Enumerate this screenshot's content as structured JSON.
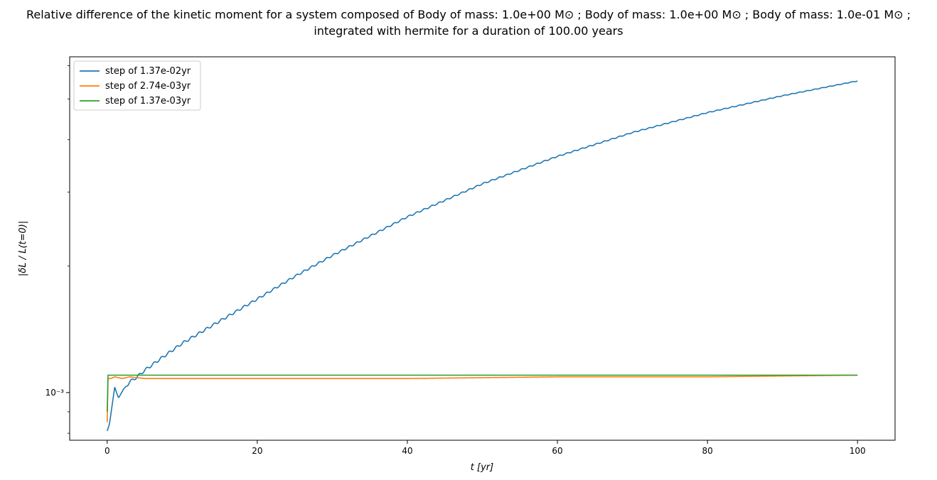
{
  "chart_data": {
    "type": "line",
    "title_lines": [
      "Relative difference of the kinetic moment for a system composed of Body of mass: 1.0e+00 M⊙ ; Body of mass: 1.0e+00 M⊙ ; Body of mass: 1.0e-01 M⊙ ;",
      "integrated with hermite for a duration of 100.00 years"
    ],
    "xlabel": "t [yr]",
    "ylabel": "|δL / L(t=0)|",
    "x_ticks": [
      0,
      20,
      40,
      60,
      80,
      100
    ],
    "x_tick_labels": [
      "0",
      "20",
      "40",
      "60",
      "80",
      "100"
    ],
    "y_scale": "log",
    "y_major_ticks": [
      0.001
    ],
    "y_major_tick_labels": [
      "10⁻³"
    ],
    "xlim": [
      -5,
      105
    ],
    "ylim": [
      0.00077,
      0.0063
    ],
    "legend_position": "top-left",
    "grid": false,
    "series": [
      {
        "name": "step of 1.37e-02yr",
        "color": "#1f77b4",
        "x": [
          0,
          0.3,
          1.0,
          1.5,
          2.2,
          3,
          4,
          5,
          7,
          10,
          15,
          20,
          25,
          30,
          40,
          50,
          60,
          70,
          80,
          90,
          100
        ],
        "y": [
          0.00081,
          0.00084,
          0.00103,
          0.00097,
          0.00102,
          0.00106,
          0.00109,
          0.00113,
          0.0012,
          0.00131,
          0.00148,
          0.00167,
          0.00189,
          0.00212,
          0.00262,
          0.00314,
          0.00365,
          0.00416,
          0.00464,
          0.00509,
          0.00552
        ],
        "wiggle": 0.03
      },
      {
        "name": "step of 2.74e-03yr",
        "color": "#ff7f0e",
        "x": [
          0,
          0.05,
          0.5,
          1,
          2,
          3,
          5,
          10,
          20,
          40,
          60,
          80,
          100
        ],
        "y": [
          0.00085,
          0.00108,
          0.00108,
          0.00109,
          0.00108,
          0.00109,
          0.00108,
          0.00108,
          0.00108,
          0.00108,
          0.00109,
          0.00109,
          0.0011
        ],
        "wiggle": 0.0
      },
      {
        "name": "step of 1.37e-03yr",
        "color": "#2ca02c",
        "x": [
          0,
          0.05,
          0.5,
          1,
          2,
          4,
          10,
          20,
          40,
          60,
          80,
          100
        ],
        "y": [
          0.0009,
          0.0011,
          0.0011,
          0.0011,
          0.0011,
          0.0011,
          0.0011,
          0.0011,
          0.0011,
          0.0011,
          0.0011,
          0.0011
        ],
        "wiggle": 0.0
      }
    ]
  }
}
